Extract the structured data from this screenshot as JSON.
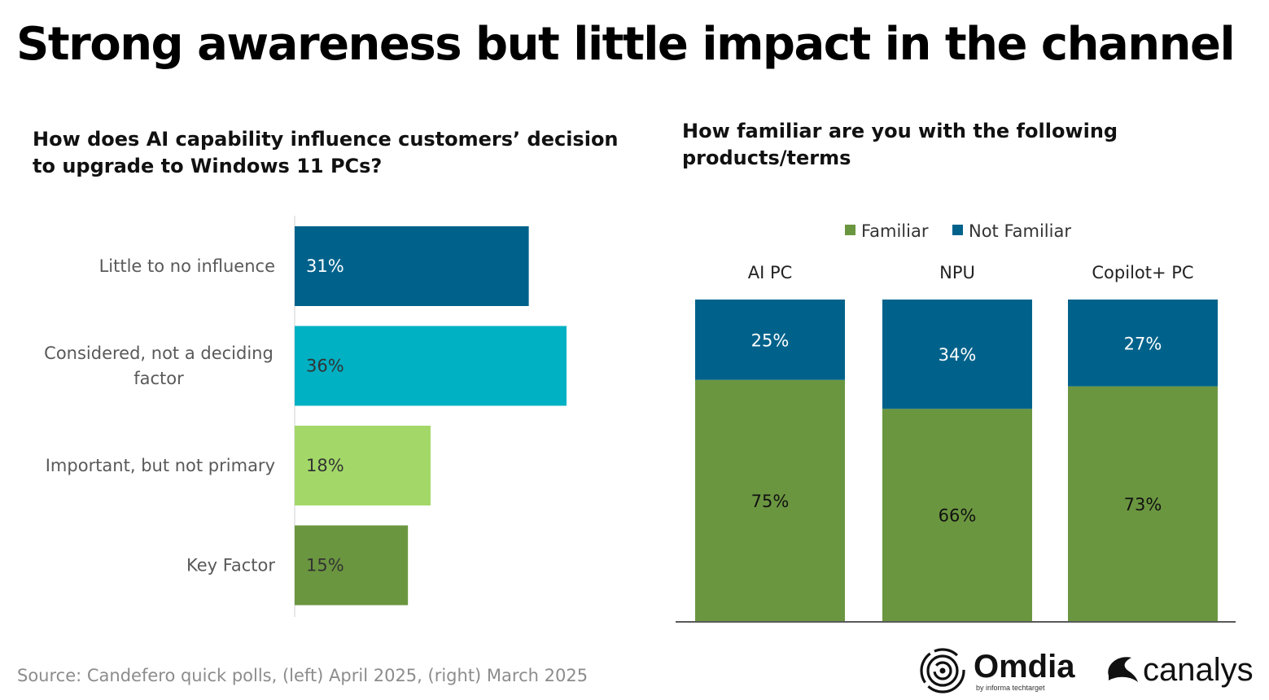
{
  "slide": {
    "title": "Strong awareness but little impact in the channel",
    "source": "Source: Candefero quick polls, (left) April 2025, (right) March 2025"
  },
  "logos": {
    "omdia": {
      "name": "Omdia",
      "tagline": "by informa techtarget"
    },
    "canalys": {
      "name": "canalys"
    }
  },
  "chart_data": [
    {
      "type": "bar",
      "orientation": "horizontal",
      "title": "How does AI capability influence customers’ decision to upgrade to Windows 11 PCs?",
      "categories": [
        "Little to no influence",
        "Considered, not a deciding factor",
        "Important, but not primary",
        "Key Factor"
      ],
      "category_lines": [
        [
          "Little to no influence"
        ],
        [
          "Considered, not a deciding",
          "factor"
        ],
        [
          "Important, but not primary"
        ],
        [
          "Key Factor"
        ]
      ],
      "values": [
        31,
        36,
        18,
        15
      ],
      "value_labels": [
        "31%",
        "36%",
        "18%",
        "15%"
      ],
      "colors": [
        "#00628b",
        "#00b0c3",
        "#a3d869",
        "#6b9640"
      ],
      "label_colors": [
        "#ffffff",
        "#333333",
        "#333333",
        "#333333"
      ],
      "xlim": [
        0,
        40
      ],
      "grid": false,
      "legend": "none"
    },
    {
      "type": "bar",
      "stacked": true,
      "normalized": true,
      "title": "How familiar are you with the following products/terms",
      "categories": [
        "AI PC",
        "NPU",
        "Copilot+ PC"
      ],
      "series": [
        {
          "name": "Familiar",
          "values": [
            75,
            66,
            73
          ],
          "labels": [
            "75%",
            "66%",
            "73%"
          ],
          "color": "#6b9640",
          "label_color": "#111111"
        },
        {
          "name": "Not Familiar",
          "values": [
            25,
            34,
            27
          ],
          "labels": [
            "25%",
            "34%",
            "27%"
          ],
          "color": "#00628b",
          "label_color": "#ffffff"
        }
      ],
      "ylim": [
        0,
        100
      ],
      "grid": false,
      "legend": "top"
    }
  ]
}
